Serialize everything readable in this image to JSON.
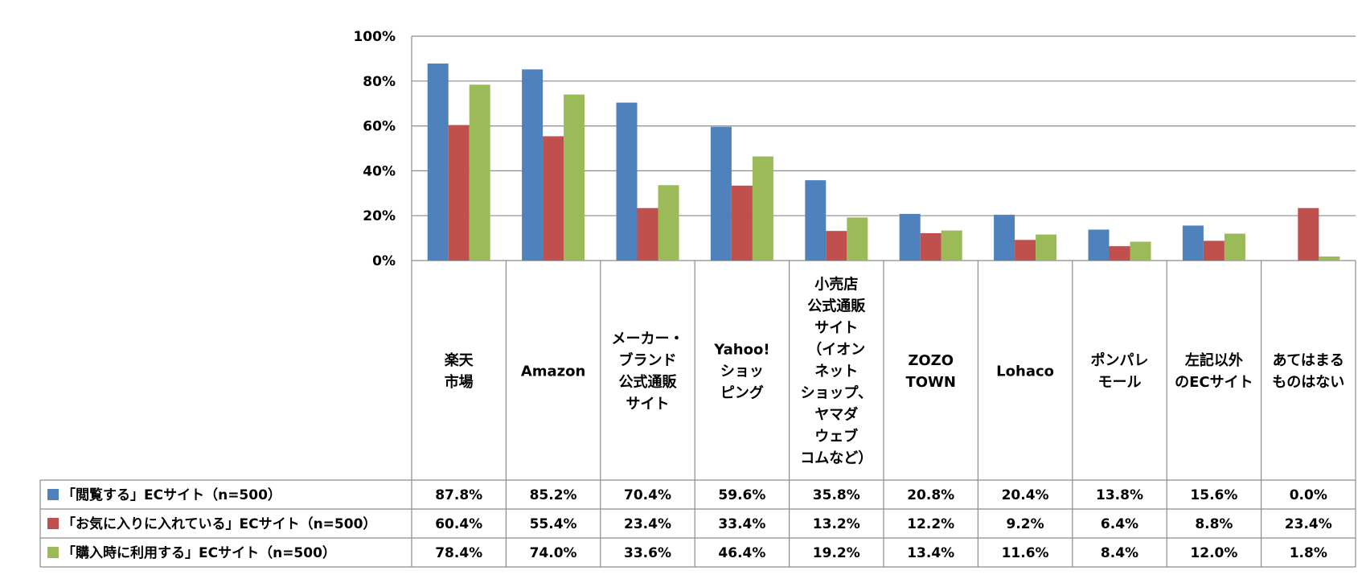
{
  "chart_data": {
    "type": "bar",
    "ylim": [
      0,
      100
    ],
    "yticks": [
      "0%",
      "20%",
      "40%",
      "60%",
      "80%",
      "100%"
    ],
    "grid": true,
    "legend": "data-table-bottom",
    "categories": [
      [
        "楽天",
        "市場"
      ],
      [
        "Amazon"
      ],
      [
        "メーカー・",
        "ブランド",
        "公式通販",
        "サイト"
      ],
      [
        "Yahoo!",
        "ショッ",
        "ピング"
      ],
      [
        "小売店",
        "公式通販",
        "サイト",
        "（イオン",
        "ネット",
        "ショップ、",
        "ヤマダ",
        "ウェブ",
        "コムなど）"
      ],
      [
        "ZOZO",
        "TOWN"
      ],
      [
        "Lohaco"
      ],
      [
        "ポンパレ",
        "モール"
      ],
      [
        "左記以外",
        "のECサイト"
      ],
      [
        "あてはまる",
        "ものはない"
      ]
    ],
    "series": [
      {
        "name": "「閲覧する」ECサイト（n=500）",
        "color": "#4F81BD",
        "values": [
          87.8,
          85.2,
          70.4,
          59.6,
          35.8,
          20.8,
          20.4,
          13.8,
          15.6,
          0.0
        ],
        "labels": [
          "87.8%",
          "85.2%",
          "70.4%",
          "59.6%",
          "35.8%",
          "20.8%",
          "20.4%",
          "13.8%",
          "15.6%",
          "0.0%"
        ]
      },
      {
        "name": "「お気に入りに入れている」ECサイト（n=500）",
        "color": "#C0504D",
        "values": [
          60.4,
          55.4,
          23.4,
          33.4,
          13.2,
          12.2,
          9.2,
          6.4,
          8.8,
          23.4
        ],
        "labels": [
          "60.4%",
          "55.4%",
          "23.4%",
          "33.4%",
          "13.2%",
          "12.2%",
          "9.2%",
          "6.4%",
          "8.8%",
          "23.4%"
        ]
      },
      {
        "name": "「購入時に利用する」ECサイト（n=500）",
        "color": "#9BBB59",
        "values": [
          78.4,
          74.0,
          33.6,
          46.4,
          19.2,
          13.4,
          11.6,
          8.4,
          12.0,
          1.8
        ],
        "labels": [
          "78.4%",
          "74.0%",
          "33.6%",
          "46.4%",
          "19.2%",
          "13.4%",
          "11.6%",
          "8.4%",
          "12.0%",
          "1.8%"
        ]
      }
    ]
  }
}
